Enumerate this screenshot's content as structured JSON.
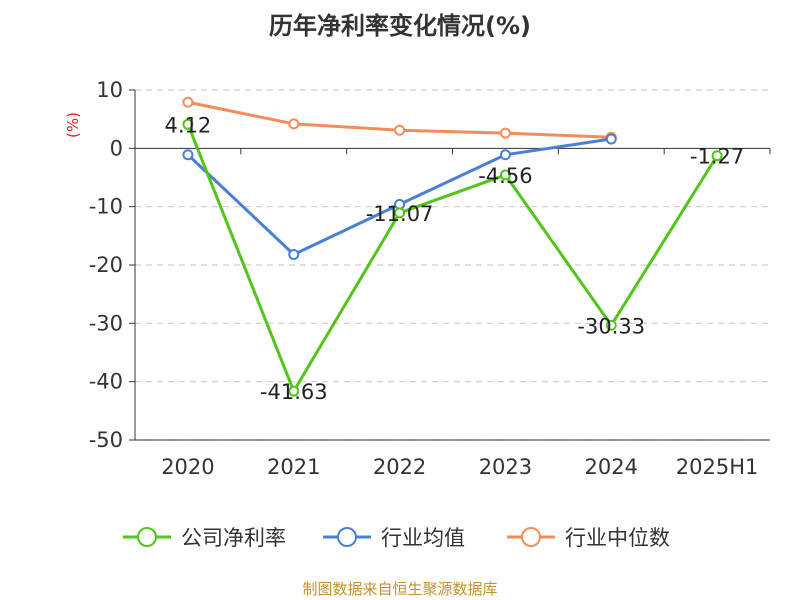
{
  "chart_data": {
    "type": "line",
    "title": "历年净利率变化情况(%)",
    "xlabel": "",
    "ylabel": "(%)",
    "categories": [
      "2020",
      "2021",
      "2022",
      "2023",
      "2024",
      "2025H1"
    ],
    "ylim": [
      -50,
      10
    ],
    "yticks": [
      10,
      0,
      -10,
      -20,
      -30,
      -40,
      -50
    ],
    "grid": true,
    "legend_position": "bottom",
    "series": [
      {
        "name": "公司净利率",
        "color": "#52c41a",
        "values": [
          4.12,
          -41.63,
          -11.07,
          -4.56,
          -30.33,
          -1.27
        ],
        "show_labels": true
      },
      {
        "name": "行业均值",
        "color": "#4a7fd8",
        "values": [
          -1.1,
          -18.2,
          -9.6,
          -1.1,
          1.6,
          null
        ],
        "show_labels": false
      },
      {
        "name": "行业中位数",
        "color": "#f28c5a",
        "values": [
          7.9,
          4.2,
          3.1,
          2.6,
          1.9,
          null
        ],
        "show_labels": false
      }
    ],
    "data_labels": [
      "4.12",
      "-41.63",
      "-11.07",
      "-4.56",
      "-30.33",
      "-1.27"
    ]
  },
  "source": "制图数据来自恒生聚源数据库"
}
